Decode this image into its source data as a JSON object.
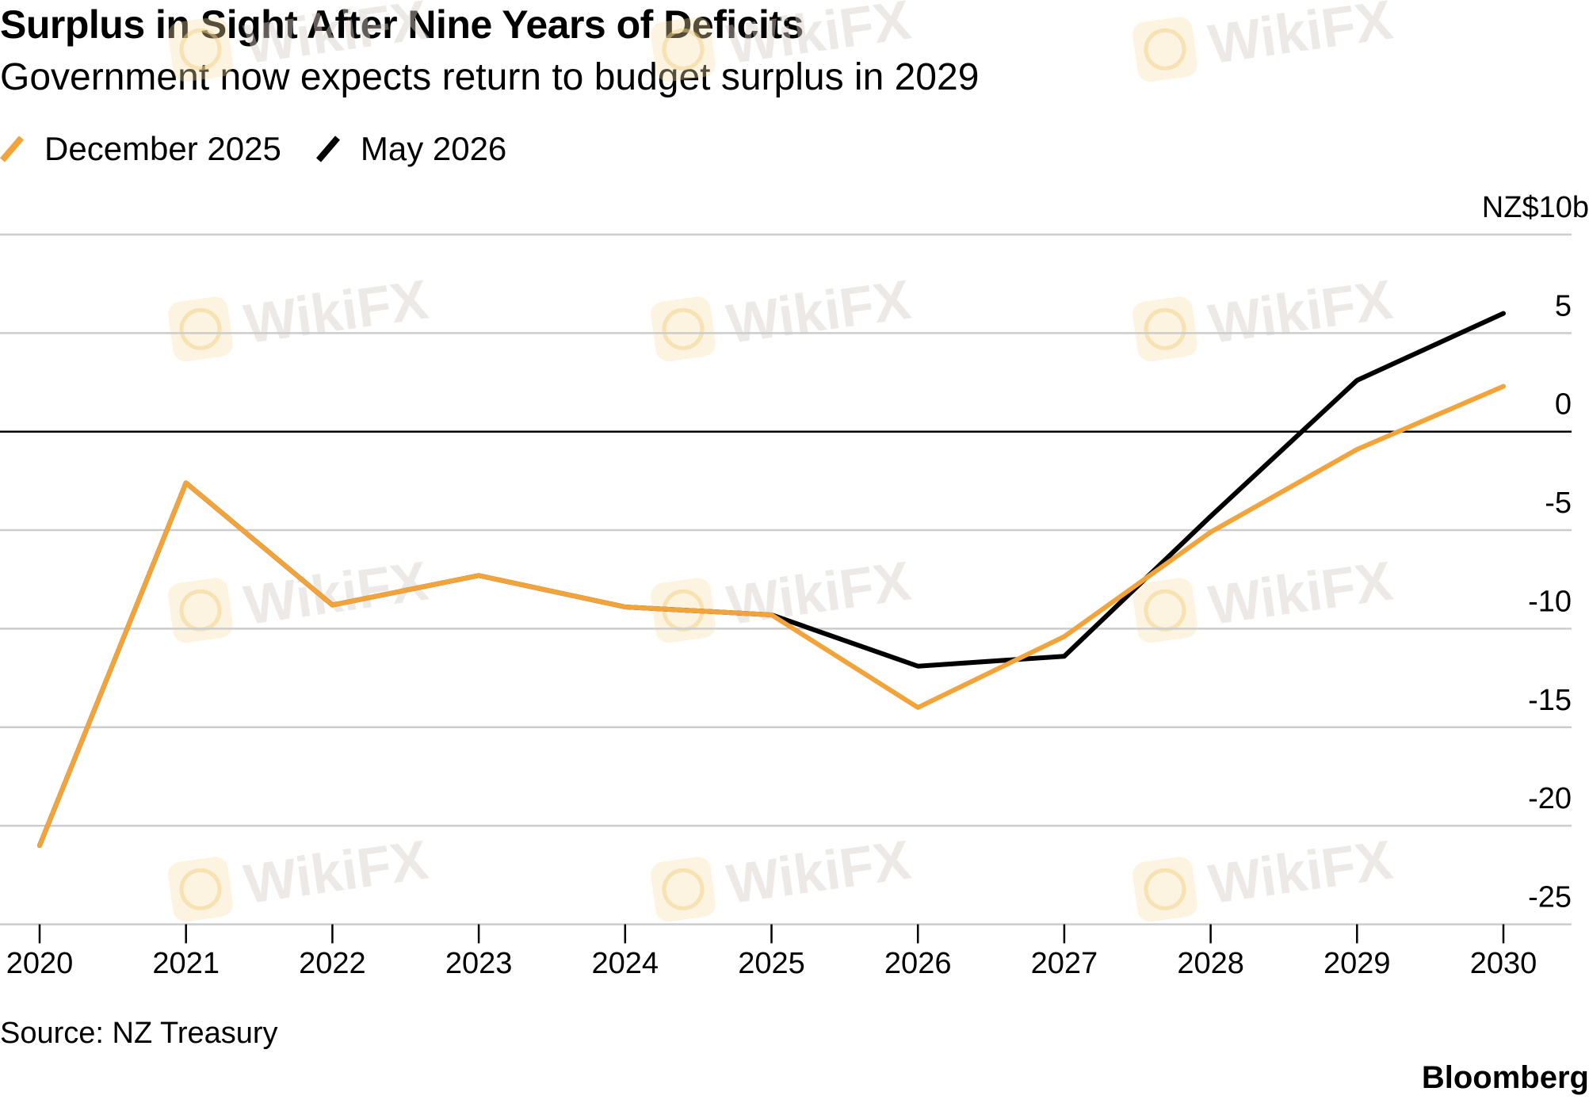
{
  "header": {
    "title": "Surplus in Sight After Nine Years of Deficits",
    "subtitle": "Government now expects return to budget surplus in 2029"
  },
  "legend": [
    {
      "label": "December 2025",
      "color": "#f2a33a"
    },
    {
      "label": "May 2026",
      "color": "#000000"
    }
  ],
  "footer": {
    "source": "Source: NZ Treasury",
    "brand": "Bloomberg"
  },
  "watermark": {
    "text": "WikiFX",
    "icon": "wikifx-logo-icon"
  },
  "chart_data": {
    "type": "line",
    "title": "Surplus in Sight After Nine Years of Deficits",
    "subtitle": "Government now expects return to budget surplus in 2029",
    "xlabel": "",
    "ylabel": "",
    "y_unit_label": "NZ$10b",
    "x": [
      "2020",
      "2021",
      "2022",
      "2023",
      "2024",
      "2025",
      "2026",
      "2027",
      "2028",
      "2029",
      "2030"
    ],
    "ylim": [
      -25,
      10
    ],
    "yticks": [
      5,
      0,
      -5,
      -10,
      -15,
      -20,
      -25
    ],
    "ytick_labels": [
      "5",
      "0",
      "-5",
      "-10",
      "-15",
      "-20",
      "-25"
    ],
    "y_axis_position": "right",
    "grid": true,
    "legend_position": "top-left",
    "series": [
      {
        "name": "December 2025",
        "color": "#f2a33a",
        "values": [
          -21.0,
          -2.6,
          -8.8,
          -7.3,
          -8.9,
          -9.3,
          -14.0,
          -10.4,
          -5.1,
          -0.9,
          2.3
        ]
      },
      {
        "name": "May 2026",
        "color": "#000000",
        "values": [
          -21.0,
          -2.6,
          -8.8,
          -7.3,
          -8.9,
          -9.3,
          -11.9,
          -11.4,
          -4.3,
          2.6,
          6.0
        ]
      }
    ]
  }
}
